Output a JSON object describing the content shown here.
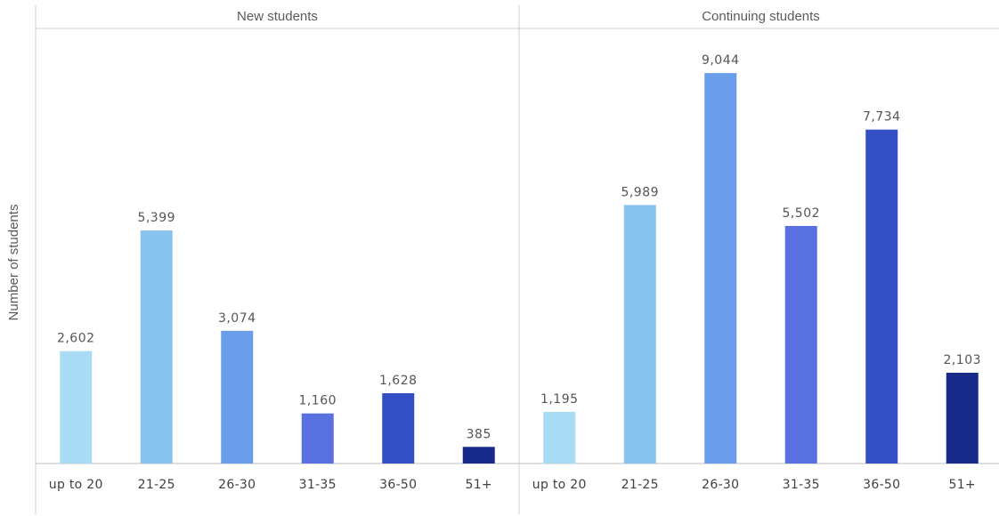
{
  "chart_data": {
    "type": "bar",
    "ylabel": "Number of students",
    "categories": [
      "up to 20",
      "21-25",
      "26-30",
      "31-35",
      "36-50",
      "51+"
    ],
    "bar_colors": [
      "#a8dbf4",
      "#89c4f1",
      "#699dea",
      "#5870e0",
      "#344fc4",
      "#172a8a"
    ],
    "ylim": [
      0,
      9500
    ],
    "panels": [
      {
        "title": "New students",
        "values": [
          2602,
          5399,
          3074,
          1160,
          1628,
          385
        ],
        "value_labels": [
          "2,602",
          "5,399",
          "3,074",
          "1,160",
          "1,628",
          "385"
        ]
      },
      {
        "title": "Continuing students",
        "values": [
          1195,
          5989,
          9044,
          5502,
          7734,
          2103
        ],
        "value_labels": [
          "1,195",
          "5,989",
          "9,044",
          "5,502",
          "7,734",
          "2,103"
        ]
      }
    ]
  }
}
